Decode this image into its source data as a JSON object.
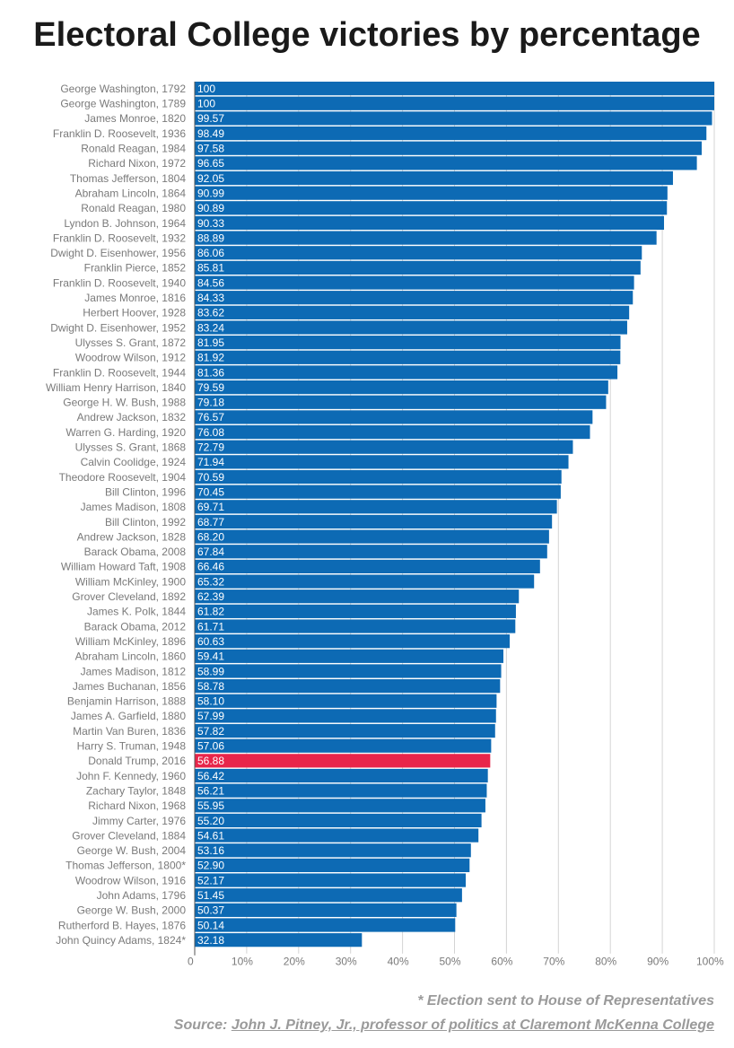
{
  "title": "Electoral College victories by percentage",
  "footnote": "* Election sent to House of Representatives",
  "source": {
    "prefix": "Source: ",
    "link_text": "John J. Pitney, Jr., professor of politics at Claremont McKenna College"
  },
  "colors": {
    "bar": "#0d6ab4",
    "highlight": "#e8254a",
    "grid": "#d4d4d4",
    "label": "#7a7a7a"
  },
  "chart_data": {
    "type": "bar",
    "orientation": "horizontal",
    "xlim": [
      0,
      100
    ],
    "grid": true,
    "x_ticks": [
      "0",
      "10%",
      "20%",
      "30%",
      "40%",
      "50%",
      "60%",
      "70%",
      "80%",
      "90%",
      "100%"
    ],
    "highlight_category": "Donald Trump, 2016",
    "categories": [
      "George Washington, 1792",
      "George Washington, 1789",
      "James Monroe, 1820",
      "Franklin D. Roosevelt, 1936",
      "Ronald Reagan, 1984",
      "Richard Nixon, 1972",
      "Thomas Jefferson, 1804",
      "Abraham Lincoln, 1864",
      "Ronald Reagan, 1980",
      "Lyndon B. Johnson, 1964",
      "Franklin D. Roosevelt, 1932",
      "Dwight D. Eisenhower, 1956",
      "Franklin Pierce, 1852",
      "Franklin D. Roosevelt, 1940",
      "James Monroe, 1816",
      "Herbert Hoover, 1928",
      "Dwight D. Eisenhower, 1952",
      "Ulysses S. Grant, 1872",
      "Woodrow Wilson, 1912",
      "Franklin D. Roosevelt, 1944",
      "William Henry Harrison, 1840",
      "George H. W. Bush, 1988",
      "Andrew Jackson, 1832",
      "Warren G. Harding, 1920",
      "Ulysses S. Grant, 1868",
      "Calvin Coolidge, 1924",
      "Theodore Roosevelt, 1904",
      "Bill Clinton, 1996",
      "James Madison, 1808",
      "Bill Clinton, 1992",
      "Andrew Jackson, 1828",
      "Barack Obama, 2008",
      "William Howard Taft, 1908",
      "William McKinley, 1900",
      "Grover Cleveland, 1892",
      "James K. Polk, 1844",
      "Barack Obama, 2012",
      "William McKinley, 1896",
      "Abraham Lincoln, 1860",
      "James Madison, 1812",
      "James Buchanan, 1856",
      "Benjamin Harrison, 1888",
      "James A. Garfield, 1880",
      "Martin Van Buren, 1836",
      "Harry S. Truman, 1948",
      "Donald Trump, 2016",
      "John F. Kennedy, 1960",
      "Zachary Taylor, 1848",
      "Richard Nixon, 1968",
      "Jimmy Carter, 1976",
      "Grover Cleveland, 1884",
      "George W. Bush, 2004",
      "Thomas Jefferson, 1800*",
      "Woodrow Wilson, 1916",
      "John Adams, 1796",
      "George W. Bush, 2000",
      "Rutherford B. Hayes, 1876",
      "John Quincy Adams, 1824*"
    ],
    "values": [
      100,
      100,
      99.57,
      98.49,
      97.58,
      96.65,
      92.05,
      90.99,
      90.89,
      90.33,
      88.89,
      86.06,
      85.81,
      84.56,
      84.33,
      83.62,
      83.24,
      81.95,
      81.92,
      81.36,
      79.59,
      79.18,
      76.57,
      76.08,
      72.79,
      71.94,
      70.59,
      70.45,
      69.71,
      68.77,
      68.2,
      67.84,
      66.46,
      65.32,
      62.39,
      61.82,
      61.71,
      60.63,
      59.41,
      58.99,
      58.78,
      58.1,
      57.99,
      57.82,
      57.06,
      56.88,
      56.42,
      56.21,
      55.95,
      55.2,
      54.61,
      53.16,
      52.9,
      52.17,
      51.45,
      50.37,
      50.14,
      32.18
    ],
    "value_labels": [
      "100",
      "100",
      "99.57",
      "98.49",
      "97.58",
      "96.65",
      "92.05",
      "90.99",
      "90.89",
      "90.33",
      "88.89",
      "86.06",
      "85.81",
      "84.56",
      "84.33",
      "83.62",
      "83.24",
      "81.95",
      "81.92",
      "81.36",
      "79.59",
      "79.18",
      "76.57",
      "76.08",
      "72.79",
      "71.94",
      "70.59",
      "70.45",
      "69.71",
      "68.77",
      "68.20",
      "67.84",
      "66.46",
      "65.32",
      "62.39",
      "61.82",
      "61.71",
      "60.63",
      "59.41",
      "58.99",
      "58.78",
      "58.10",
      "57.99",
      "57.82",
      "57.06",
      "56.88",
      "56.42",
      "56.21",
      "55.95",
      "55.20",
      "54.61",
      "53.16",
      "52.90",
      "52.17",
      "51.45",
      "50.37",
      "50.14",
      "32.18"
    ]
  }
}
